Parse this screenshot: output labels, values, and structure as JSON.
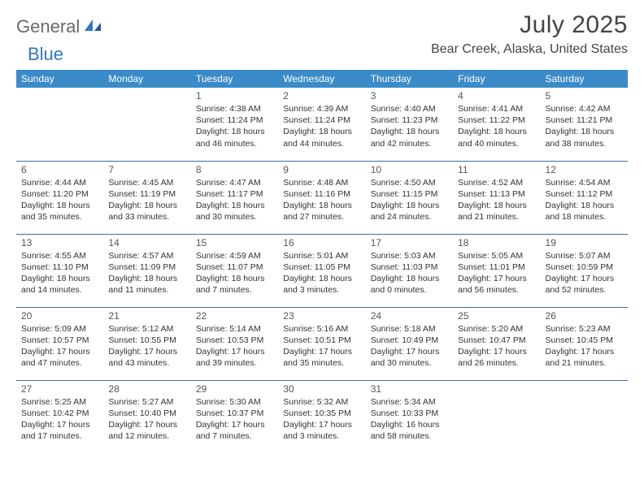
{
  "logo": {
    "part1": "General",
    "part2": "Blue"
  },
  "title": "July 2025",
  "location": "Bear Creek, Alaska, United States",
  "colors": {
    "header_bg": "#3b8bc9",
    "header_text": "#ffffff",
    "rule": "#3b6fa0",
    "logo_gray": "#6a6a6a",
    "logo_blue": "#2f78c2"
  },
  "weekdays": [
    "Sunday",
    "Monday",
    "Tuesday",
    "Wednesday",
    "Thursday",
    "Friday",
    "Saturday"
  ],
  "weeks": [
    [
      null,
      null,
      {
        "day": "1",
        "sunrise": "Sunrise: 4:38 AM",
        "sunset": "Sunset: 11:24 PM",
        "daylight1": "Daylight: 18 hours",
        "daylight2": "and 46 minutes."
      },
      {
        "day": "2",
        "sunrise": "Sunrise: 4:39 AM",
        "sunset": "Sunset: 11:24 PM",
        "daylight1": "Daylight: 18 hours",
        "daylight2": "and 44 minutes."
      },
      {
        "day": "3",
        "sunrise": "Sunrise: 4:40 AM",
        "sunset": "Sunset: 11:23 PM",
        "daylight1": "Daylight: 18 hours",
        "daylight2": "and 42 minutes."
      },
      {
        "day": "4",
        "sunrise": "Sunrise: 4:41 AM",
        "sunset": "Sunset: 11:22 PM",
        "daylight1": "Daylight: 18 hours",
        "daylight2": "and 40 minutes."
      },
      {
        "day": "5",
        "sunrise": "Sunrise: 4:42 AM",
        "sunset": "Sunset: 11:21 PM",
        "daylight1": "Daylight: 18 hours",
        "daylight2": "and 38 minutes."
      }
    ],
    [
      {
        "day": "6",
        "sunrise": "Sunrise: 4:44 AM",
        "sunset": "Sunset: 11:20 PM",
        "daylight1": "Daylight: 18 hours",
        "daylight2": "and 35 minutes."
      },
      {
        "day": "7",
        "sunrise": "Sunrise: 4:45 AM",
        "sunset": "Sunset: 11:19 PM",
        "daylight1": "Daylight: 18 hours",
        "daylight2": "and 33 minutes."
      },
      {
        "day": "8",
        "sunrise": "Sunrise: 4:47 AM",
        "sunset": "Sunset: 11:17 PM",
        "daylight1": "Daylight: 18 hours",
        "daylight2": "and 30 minutes."
      },
      {
        "day": "9",
        "sunrise": "Sunrise: 4:48 AM",
        "sunset": "Sunset: 11:16 PM",
        "daylight1": "Daylight: 18 hours",
        "daylight2": "and 27 minutes."
      },
      {
        "day": "10",
        "sunrise": "Sunrise: 4:50 AM",
        "sunset": "Sunset: 11:15 PM",
        "daylight1": "Daylight: 18 hours",
        "daylight2": "and 24 minutes."
      },
      {
        "day": "11",
        "sunrise": "Sunrise: 4:52 AM",
        "sunset": "Sunset: 11:13 PM",
        "daylight1": "Daylight: 18 hours",
        "daylight2": "and 21 minutes."
      },
      {
        "day": "12",
        "sunrise": "Sunrise: 4:54 AM",
        "sunset": "Sunset: 11:12 PM",
        "daylight1": "Daylight: 18 hours",
        "daylight2": "and 18 minutes."
      }
    ],
    [
      {
        "day": "13",
        "sunrise": "Sunrise: 4:55 AM",
        "sunset": "Sunset: 11:10 PM",
        "daylight1": "Daylight: 18 hours",
        "daylight2": "and 14 minutes."
      },
      {
        "day": "14",
        "sunrise": "Sunrise: 4:57 AM",
        "sunset": "Sunset: 11:09 PM",
        "daylight1": "Daylight: 18 hours",
        "daylight2": "and 11 minutes."
      },
      {
        "day": "15",
        "sunrise": "Sunrise: 4:59 AM",
        "sunset": "Sunset: 11:07 PM",
        "daylight1": "Daylight: 18 hours",
        "daylight2": "and 7 minutes."
      },
      {
        "day": "16",
        "sunrise": "Sunrise: 5:01 AM",
        "sunset": "Sunset: 11:05 PM",
        "daylight1": "Daylight: 18 hours",
        "daylight2": "and 3 minutes."
      },
      {
        "day": "17",
        "sunrise": "Sunrise: 5:03 AM",
        "sunset": "Sunset: 11:03 PM",
        "daylight1": "Daylight: 18 hours",
        "daylight2": "and 0 minutes."
      },
      {
        "day": "18",
        "sunrise": "Sunrise: 5:05 AM",
        "sunset": "Sunset: 11:01 PM",
        "daylight1": "Daylight: 17 hours",
        "daylight2": "and 56 minutes."
      },
      {
        "day": "19",
        "sunrise": "Sunrise: 5:07 AM",
        "sunset": "Sunset: 10:59 PM",
        "daylight1": "Daylight: 17 hours",
        "daylight2": "and 52 minutes."
      }
    ],
    [
      {
        "day": "20",
        "sunrise": "Sunrise: 5:09 AM",
        "sunset": "Sunset: 10:57 PM",
        "daylight1": "Daylight: 17 hours",
        "daylight2": "and 47 minutes."
      },
      {
        "day": "21",
        "sunrise": "Sunrise: 5:12 AM",
        "sunset": "Sunset: 10:55 PM",
        "daylight1": "Daylight: 17 hours",
        "daylight2": "and 43 minutes."
      },
      {
        "day": "22",
        "sunrise": "Sunrise: 5:14 AM",
        "sunset": "Sunset: 10:53 PM",
        "daylight1": "Daylight: 17 hours",
        "daylight2": "and 39 minutes."
      },
      {
        "day": "23",
        "sunrise": "Sunrise: 5:16 AM",
        "sunset": "Sunset: 10:51 PM",
        "daylight1": "Daylight: 17 hours",
        "daylight2": "and 35 minutes."
      },
      {
        "day": "24",
        "sunrise": "Sunrise: 5:18 AM",
        "sunset": "Sunset: 10:49 PM",
        "daylight1": "Daylight: 17 hours",
        "daylight2": "and 30 minutes."
      },
      {
        "day": "25",
        "sunrise": "Sunrise: 5:20 AM",
        "sunset": "Sunset: 10:47 PM",
        "daylight1": "Daylight: 17 hours",
        "daylight2": "and 26 minutes."
      },
      {
        "day": "26",
        "sunrise": "Sunrise: 5:23 AM",
        "sunset": "Sunset: 10:45 PM",
        "daylight1": "Daylight: 17 hours",
        "daylight2": "and 21 minutes."
      }
    ],
    [
      {
        "day": "27",
        "sunrise": "Sunrise: 5:25 AM",
        "sunset": "Sunset: 10:42 PM",
        "daylight1": "Daylight: 17 hours",
        "daylight2": "and 17 minutes."
      },
      {
        "day": "28",
        "sunrise": "Sunrise: 5:27 AM",
        "sunset": "Sunset: 10:40 PM",
        "daylight1": "Daylight: 17 hours",
        "daylight2": "and 12 minutes."
      },
      {
        "day": "29",
        "sunrise": "Sunrise: 5:30 AM",
        "sunset": "Sunset: 10:37 PM",
        "daylight1": "Daylight: 17 hours",
        "daylight2": "and 7 minutes."
      },
      {
        "day": "30",
        "sunrise": "Sunrise: 5:32 AM",
        "sunset": "Sunset: 10:35 PM",
        "daylight1": "Daylight: 17 hours",
        "daylight2": "and 3 minutes."
      },
      {
        "day": "31",
        "sunrise": "Sunrise: 5:34 AM",
        "sunset": "Sunset: 10:33 PM",
        "daylight1": "Daylight: 16 hours",
        "daylight2": "and 58 minutes."
      },
      null,
      null
    ]
  ]
}
